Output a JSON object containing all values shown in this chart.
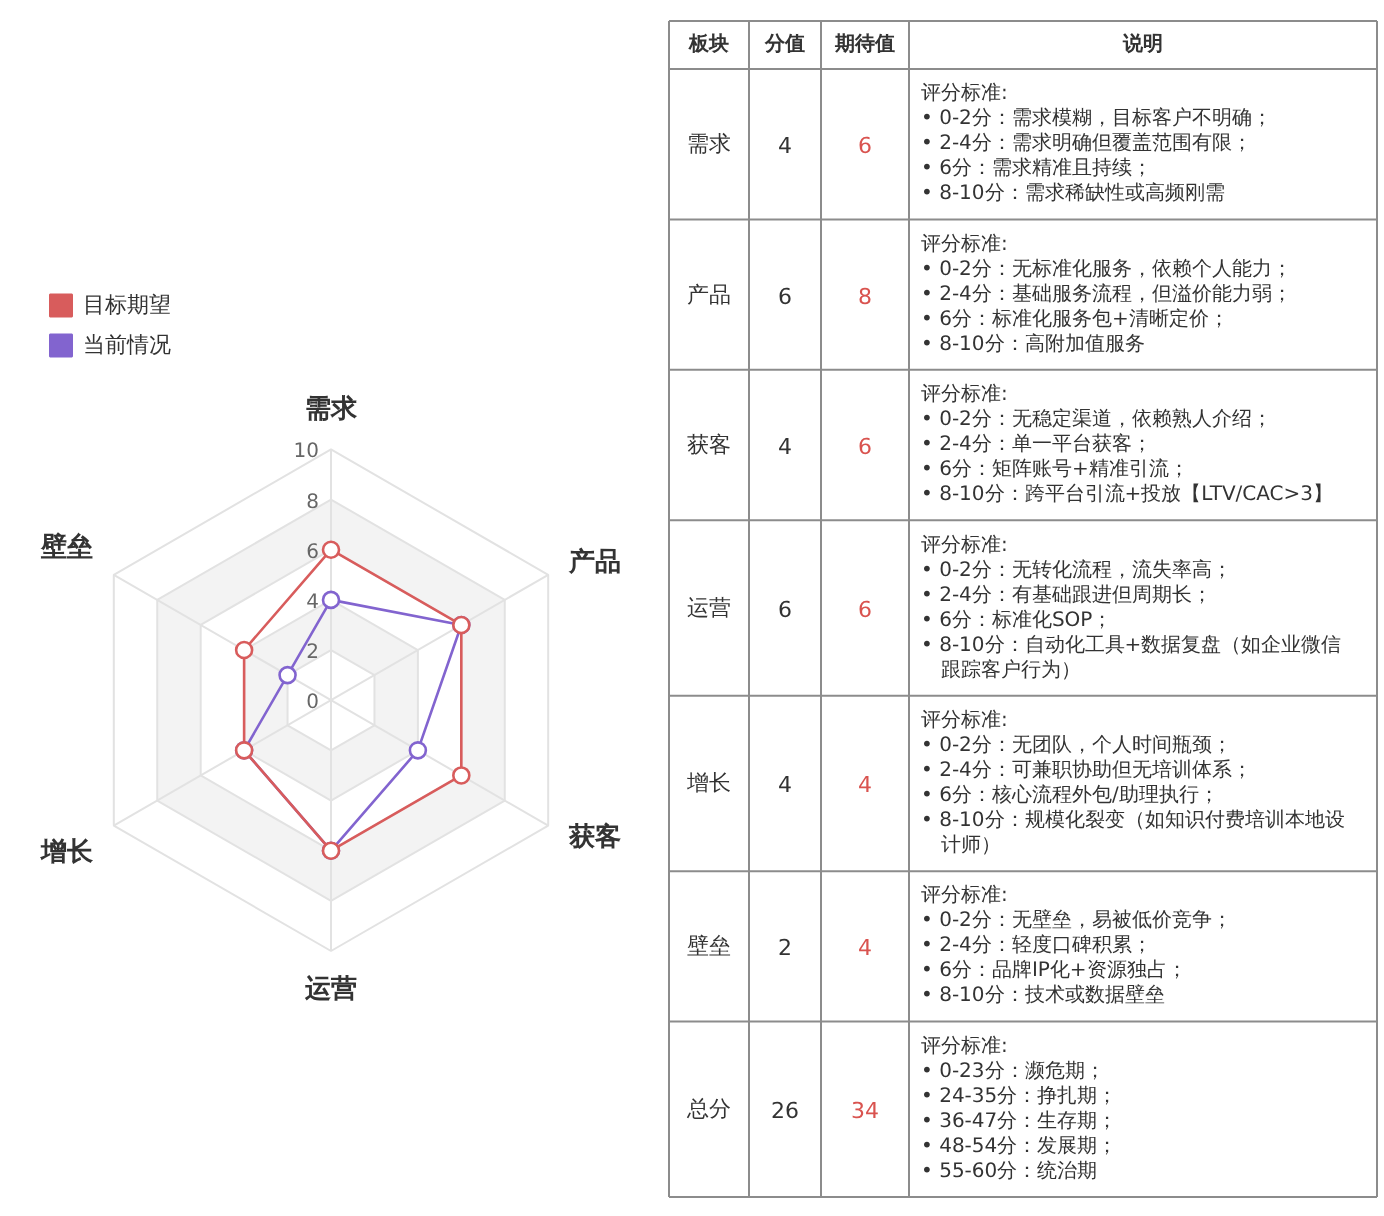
{
  "chart_data": [
    {
      "type": "radar",
      "categories": [
        "需求",
        "产品",
        "获客",
        "运营",
        "增长",
        "壁垒"
      ],
      "series": [
        {
          "name": "目标期望",
          "color": "#d85c5c",
          "values": [
            6,
            6,
            6,
            6,
            4,
            4
          ]
        },
        {
          "name": "当前情况",
          "color": "#8264cf",
          "values": [
            4,
            6,
            4,
            6,
            4,
            2
          ]
        }
      ],
      "ylim": [
        0,
        10
      ],
      "yticks": [
        0,
        2,
        4,
        6,
        8,
        10
      ],
      "grid": true,
      "legend": "top left",
      "marker": "circle",
      "line_style": "solid"
    },
    {
      "type": "other",
      "ylabel": "板块",
      "categories": [
        "需求",
        "产品",
        "获客",
        "运营",
        "增长",
        "壁垒",
        "总分"
      ],
      "data_labels": true,
      "series": [
        {
          "name": "分值",
          "values": [
            4,
            6,
            4,
            6,
            4,
            2,
            26
          ]
        },
        {
          "name": "期待值",
          "values": [
            6,
            8,
            6,
            6,
            4,
            4,
            34
          ]
        }
      ],
      "annotations": [
        "说明",
        {
          "text": "评分标准:",
          "y": "需求"
        },
        {
          "text": "• 0-2分：需求模糊，目标客户不明确；",
          "y": "需求"
        },
        {
          "text": "• 2-4分：需求明确但覆盖范围有限；",
          "y": "需求"
        },
        {
          "text": "• 6分：需求精准且持续；",
          "y": "需求"
        },
        {
          "text": "• 8-10分：需求稀缺性或高频刚需",
          "y": "需求"
        },
        {
          "text": "评分标准:",
          "y": "产品"
        },
        {
          "text": "• 0-2分：无标准化服务，依赖个人能力；",
          "y": "产品"
        },
        {
          "text": "• 2-4分：基础服务流程，但溢价能力弱；",
          "y": "产品"
        },
        {
          "text": "• 6分：标准化服务包+清晰定价；",
          "y": "产品"
        },
        {
          "text": "• 8-10分：高附加值服务",
          "y": "产品"
        },
        {
          "text": "评分标准:",
          "y": "获客"
        },
        {
          "text": "• 0-2分：无稳定渠道，依赖熟人介绍；",
          "y": "获客"
        },
        {
          "text": "• 2-4分：单一平台获客；",
          "y": "获客"
        },
        {
          "text": "• 6分：矩阵账号+精准引流；",
          "y": "获客"
        },
        {
          "text": "• 8-10分：跨平台引流+投放【LTV/CAC>3】",
          "y": "获客"
        },
        {
          "text": "评分标准:",
          "y": "运营"
        },
        {
          "text": "• 0-2分：无转化流程，流失率高；",
          "y": "运营"
        },
        {
          "text": "• 2-4分：有基础跟进但周期长；",
          "y": "运营"
        },
        {
          "text": "• 6分：标准化SOP；",
          "y": "运营"
        },
        {
          "text": "• 8-10分：自动化工具+数据复盘（如企业微信跟踪客户行为）",
          "y": "运营"
        },
        {
          "text": "评分标准:",
          "y": "增长"
        },
        {
          "text": "• 0-2分：无团队，个人时间瓶颈；",
          "y": "增长"
        },
        {
          "text": "• 2-4分：可兼职协助但无培训体系；",
          "y": "增长"
        },
        {
          "text": "• 6分：核心流程外包/助理执行；",
          "y": "增长"
        },
        {
          "text": "• 8-10分：规模化裂变（如知识付费培训本地设计师）",
          "y": "增长"
        },
        {
          "text": "评分标准:",
          "y": "壁垒"
        },
        {
          "text": "• 0-2分：无壁垒，易被低价竞争；",
          "y": "壁垒"
        },
        {
          "text": "• 2-4分：轻度口碑积累；",
          "y": "壁垒"
        },
        {
          "text": "• 6分：品牌IP化+资源独占；",
          "y": "壁垒"
        },
        {
          "text": "• 8-10分：技术或数据壁垒",
          "y": "壁垒"
        },
        {
          "text": "评分标准:",
          "y": "总分"
        },
        {
          "text": "• 0-23分：濒危期；",
          "y": "总分"
        },
        {
          "text": "• 24-35分：挣扎期；",
          "y": "总分"
        },
        {
          "text": "• 36-47分：生存期；",
          "y": "总分"
        },
        {
          "text": "• 48-54分：发展期；",
          "y": "总分"
        },
        {
          "text": "• 55-60分：统治期",
          "y": "总分"
        }
      ]
    }
  ]
}
